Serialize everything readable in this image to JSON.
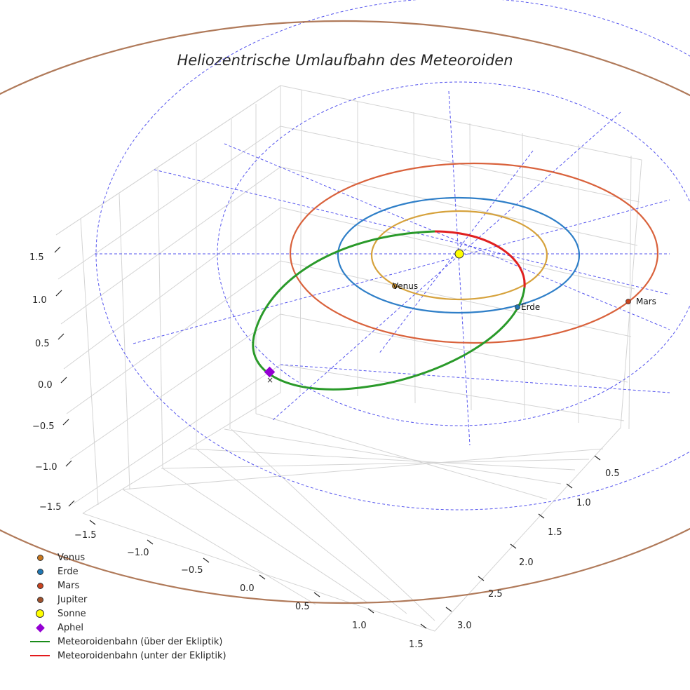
{
  "chart_data": {
    "type": "3d-orbit",
    "title": "Heliozentrische Umlaufbahn des Meteoroiden",
    "axes": {
      "x": {
        "ticks": [
          "−1.5",
          "−1.0",
          "−0.5",
          "0.0",
          "0.5",
          "1.0",
          "1.5"
        ],
        "range": [
          -1.6,
          1.6
        ]
      },
      "y": {
        "ticks": [
          "0.5",
          "1.0",
          "1.5",
          "2.0",
          "2.5",
          "3.0"
        ],
        "range": [
          0.2,
          3.2
        ]
      },
      "z": {
        "ticks": [
          "1.5",
          "1.0",
          "0.5",
          "0.0",
          "−0.5",
          "−1.0",
          "−1.5"
        ],
        "range": [
          -1.6,
          1.6
        ]
      }
    },
    "bodies": [
      {
        "name": "Venus",
        "label": "Venus",
        "color": "#c98b26"
      },
      {
        "name": "Erde",
        "label": "Erde",
        "color": "#1f77b4"
      },
      {
        "name": "Mars",
        "label": "Mars",
        "color": "#c9431f"
      }
    ],
    "orbits": [
      {
        "name": "Venus",
        "color": "#d6a23c"
      },
      {
        "name": "Erde",
        "color": "#2f7fc8"
      },
      {
        "name": "Mars",
        "color": "#d9623c"
      },
      {
        "name": "Jupiter",
        "color": "#b07a5a"
      }
    ],
    "meteoroid": {
      "above_color": "#2a9a2a",
      "below_color": "#e02020"
    },
    "legend": [
      {
        "label": "Venus",
        "kind": "dot",
        "color": "#c9781f"
      },
      {
        "label": "Erde",
        "kind": "dot",
        "color": "#1f77b4"
      },
      {
        "label": "Mars",
        "kind": "dot",
        "color": "#c9431f"
      },
      {
        "label": "Jupiter",
        "kind": "dot",
        "color": "#a0522d"
      },
      {
        "label": "Sonne",
        "kind": "sun",
        "color": "#ffff00"
      },
      {
        "label": "Aphel",
        "kind": "diamond",
        "color": "#9400d3"
      },
      {
        "label": "Meteoroidenbahn (über der Ekliptik)",
        "kind": "line",
        "color": "#1a8c1a"
      },
      {
        "label": "Meteoroidenbahn (unter der Ekliptik)",
        "kind": "line",
        "color": "#e31a1c"
      }
    ]
  }
}
